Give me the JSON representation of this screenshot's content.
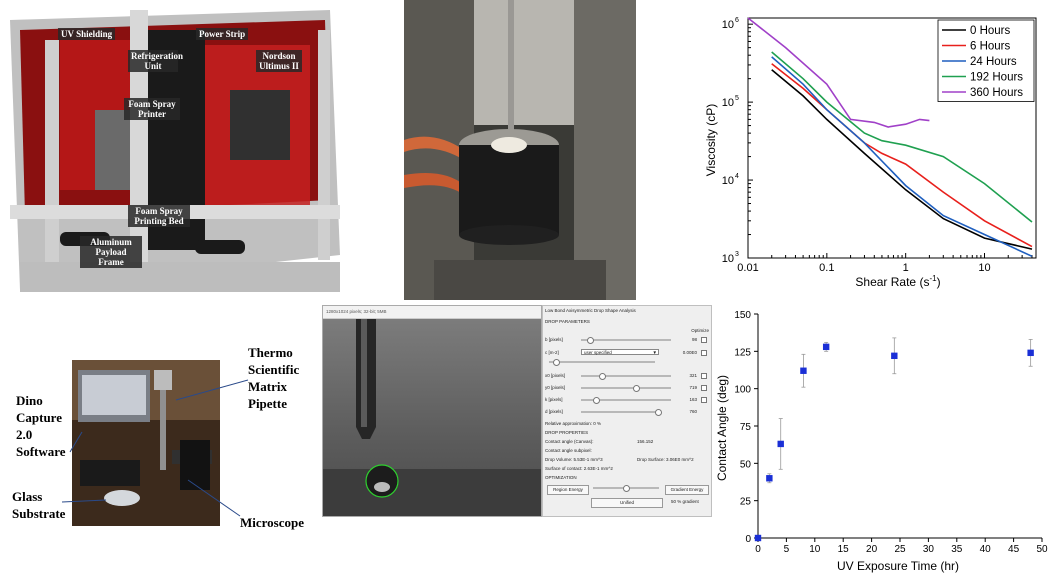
{
  "printer_photo": {
    "labels": {
      "uv_shielding": "UV Shielding",
      "power_strip": "Power Strip",
      "refrigeration": "Refrigeration Unit",
      "nordson": "Nordson Ultimus II",
      "foam_spray_printer": "Foam Spray Printer",
      "printing_bed": "Foam Spray Printing Bed",
      "payload_frame": "Aluminum Payload Frame"
    }
  },
  "contact_photo": {
    "labels": {
      "pipette": "Thermo Scientific Matrix Pipette",
      "dino": "Dino Capture 2.0 Software",
      "glass": "Glass Substrate",
      "microscope": "Microscope"
    }
  },
  "drop_window": {
    "camera_title": "1280x1024 pixels; 32-bit; 5MB",
    "title": "Low Bond Axisymmetric Drop Shape Analysis",
    "drop_parameters": "DROP PARAMETERS",
    "optimize": "Optimize",
    "params": [
      {
        "label": "b [pixels]",
        "value": "98"
      },
      {
        "label": "c [m-2]",
        "value": "0.00E0",
        "select": "user specified"
      },
      {
        "label": "x0 [pixels]",
        "value": "321"
      },
      {
        "label": "y0 [pixels]",
        "value": "719"
      },
      {
        "label": "k [pixels]",
        "value": "163"
      },
      {
        "label": "d [pixels]",
        "value": "760"
      }
    ],
    "relative_approx": "Relative approximation: 0 %",
    "drop_properties": "DROP PROPERTIES",
    "contact_angle": "Contact angle (Canvas):",
    "contact_angle_value": "156.152",
    "contact_angle_subpixel": "Contact angle subpixel:",
    "drop_volume": "Drop Volume: 5.53E-1 mm^3",
    "drop_surface": "Drop Surface: 3.06E0 mm^2",
    "surface_contact": "Surface of contact: 2.63E-1 mm^2",
    "optimization": "OPTIMIZATION",
    "region_energy": "Region Energy",
    "gradient_energy": "Gradient Energy",
    "unified": "Unified",
    "gradient_pct": "50 % gradient"
  },
  "viscosity_chart": {
    "chart_data": {
      "type": "line",
      "xlabel": "Shear Rate (s",
      "xlabel_sup": "-1",
      "xlabel_end": ")",
      "ylabel": "Viscosity (cP)",
      "xscale": "log",
      "yscale": "log",
      "xlim": [
        0.01,
        45
      ],
      "ylim": [
        1000,
        1200000
      ],
      "x_ticks": [
        "0.01",
        "0.1",
        "1",
        "10"
      ],
      "y_ticks": [
        "10",
        "10",
        "10",
        "10"
      ],
      "y_tick_exps": [
        "3",
        "4",
        "5",
        "6"
      ],
      "legend_position": "top-right",
      "series": [
        {
          "name": "0 Hours",
          "color": "#000000",
          "points": [
            [
              0.02,
              260000
            ],
            [
              0.05,
              120000
            ],
            [
              0.1,
              60000
            ],
            [
              0.3,
              22000
            ],
            [
              1,
              7500
            ],
            [
              3,
              3200
            ],
            [
              10,
              1800
            ],
            [
              40,
              1300
            ]
          ]
        },
        {
          "name": "6 Hours",
          "color": "#e8201c",
          "points": [
            [
              0.02,
              310000
            ],
            [
              0.05,
              150000
            ],
            [
              0.1,
              80000
            ],
            [
              0.3,
              30000
            ],
            [
              0.5,
              22000
            ],
            [
              1,
              16000
            ],
            [
              3,
              7000
            ],
            [
              10,
              3000
            ],
            [
              40,
              1400
            ]
          ]
        },
        {
          "name": "24 Hours",
          "color": "#1f5fbf",
          "points": [
            [
              0.02,
              380000
            ],
            [
              0.05,
              170000
            ],
            [
              0.1,
              80000
            ],
            [
              0.3,
              30000
            ],
            [
              1,
              8500
            ],
            [
              3,
              3500
            ],
            [
              10,
              2000
            ],
            [
              40,
              1050
            ]
          ]
        },
        {
          "name": "192 Hours",
          "color": "#1fa050",
          "points": [
            [
              0.02,
              440000
            ],
            [
              0.05,
              200000
            ],
            [
              0.1,
              100000
            ],
            [
              0.3,
              40000
            ],
            [
              0.5,
              32000
            ],
            [
              1,
              28000
            ],
            [
              3,
              20000
            ],
            [
              10,
              9000
            ],
            [
              40,
              2900
            ]
          ]
        },
        {
          "name": "360 Hours",
          "color": "#a040c8",
          "points": [
            [
              0.01,
              1200000
            ],
            [
              0.03,
              500000
            ],
            [
              0.1,
              170000
            ],
            [
              0.2,
              60000
            ],
            [
              0.4,
              55000
            ],
            [
              0.6,
              48000
            ],
            [
              1,
              52000
            ],
            [
              1.5,
              60000
            ],
            [
              2,
              58000
            ]
          ]
        }
      ]
    }
  },
  "contact_angle_chart": {
    "chart_data": {
      "type": "scatter",
      "xlabel": "UV Exposure Time (hr)",
      "ylabel": "Contact Angle (deg)",
      "xlim": [
        0,
        50
      ],
      "ylim": [
        0,
        150
      ],
      "x_ticks": [
        "0",
        "5",
        "10",
        "15",
        "20",
        "25",
        "30",
        "35",
        "40",
        "45",
        "50"
      ],
      "y_ticks": [
        "0",
        "25",
        "50",
        "75",
        "100",
        "125",
        "150"
      ],
      "color": "#1a2fd6",
      "points": [
        {
          "x": 0,
          "y": 0,
          "err": 0
        },
        {
          "x": 2,
          "y": 40,
          "err": 3
        },
        {
          "x": 4,
          "y": 63,
          "err": 17
        },
        {
          "x": 8,
          "y": 112,
          "err": 11
        },
        {
          "x": 12,
          "y": 128,
          "err": 3
        },
        {
          "x": 24,
          "y": 122,
          "err": 12
        },
        {
          "x": 48,
          "y": 124,
          "err": 9
        }
      ]
    }
  }
}
